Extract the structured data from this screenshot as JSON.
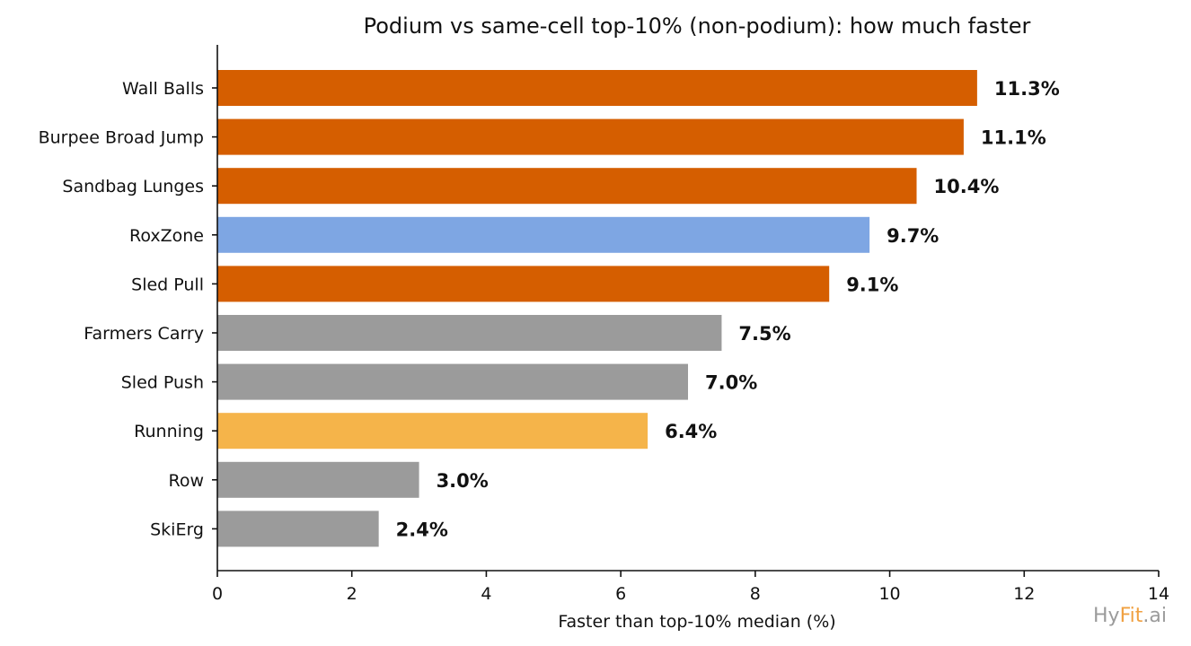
{
  "chart_data": {
    "type": "bar",
    "orientation": "horizontal",
    "title": "Podium vs same-cell top-10% (non-podium): how much faster",
    "xlabel": "Faster than top-10% median (%)",
    "ylabel": "",
    "xlim": [
      0,
      14
    ],
    "xticks": [
      "0",
      "2",
      "4",
      "6",
      "8",
      "10",
      "12",
      "14"
    ],
    "grid": false,
    "categories": [
      "Wall Balls",
      "Burpee Broad Jump",
      "Sandbag Lunges",
      "RoxZone",
      "Sled Pull",
      "Farmers Carry",
      "Sled Push",
      "Running",
      "Row",
      "SkiErg"
    ],
    "values": [
      11.3,
      11.1,
      10.4,
      9.7,
      9.1,
      7.5,
      7.0,
      6.4,
      3.0,
      2.4
    ],
    "value_labels": [
      "11.3%",
      "11.1%",
      "10.4%",
      "9.7%",
      "9.1%",
      "7.5%",
      "7.0%",
      "6.4%",
      "3.0%",
      "2.4%"
    ],
    "colors": [
      "#d55e00",
      "#d55e00",
      "#d55e00",
      "#7ea6e3",
      "#d55e00",
      "#9b9b9b",
      "#9b9b9b",
      "#f5b44a",
      "#9b9b9b",
      "#9b9b9b"
    ]
  },
  "watermark": {
    "part1": "Hy",
    "part2": "Fit",
    "part3": ".ai",
    "color1": "#9b9b9b",
    "color2": "#f0a040",
    "color3": "#9b9b9b"
  }
}
